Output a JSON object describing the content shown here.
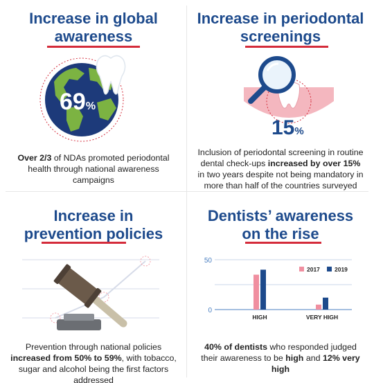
{
  "panels": {
    "global_awareness": {
      "title_line1": "Increase in global",
      "title_line2": "awareness",
      "stat_number": "69",
      "stat_unit": "%",
      "desc_bold": "Over 2/3",
      "desc_rest": " of NDAs promoted periodontal health through national awareness campaigns",
      "icons": [
        "globe-icon",
        "tooth-icon"
      ]
    },
    "periodontal_screenings": {
      "title_line1": "Increase in periodontal",
      "title_line2": "screenings",
      "stat_number": "15",
      "stat_unit": "%",
      "desc_pre": "Inclusion of periodontal screening in routine dental check-ups ",
      "desc_bold": "increased by over 15%",
      "desc_post": " in two years despite not being mandatory in more than half of the countries surveyed",
      "icons": [
        "magnifier-icon",
        "gum-tooth-icon"
      ]
    },
    "prevention_policies": {
      "title_line1": "Increase in",
      "title_line2": "prevention policies",
      "desc_pre": "Prevention through national policies ",
      "desc_bold": "increased from 50% to 59%",
      "desc_post": ", with tobacco, sugar and alcohol being the first factors addressed",
      "icons": [
        "gavel-icon"
      ]
    },
    "dentists_awareness": {
      "title_line1": "Dentists’ awareness",
      "title_line2": "on the rise",
      "desc_bold1": "40% of dentists",
      "desc_mid": " who responded judged their awareness to be ",
      "desc_bold2": "high",
      "desc_and": " and ",
      "desc_bold3": "12% very high"
    }
  },
  "chart_data": {
    "type": "bar",
    "categories": [
      "HIGH",
      "VERY HIGH"
    ],
    "series": [
      {
        "name": "2017",
        "values": [
          35,
          5
        ],
        "color": "#f08fa0"
      },
      {
        "name": "2019",
        "values": [
          40,
          12
        ],
        "color": "#1d4a8c"
      }
    ],
    "ylim": [
      0,
      50
    ],
    "yticks": [
      "0",
      "50"
    ],
    "legend_position": "top-right",
    "grid": true
  },
  "colors": {
    "title_blue": "#1d4a8c",
    "accent_red": "#d42b3a"
  }
}
